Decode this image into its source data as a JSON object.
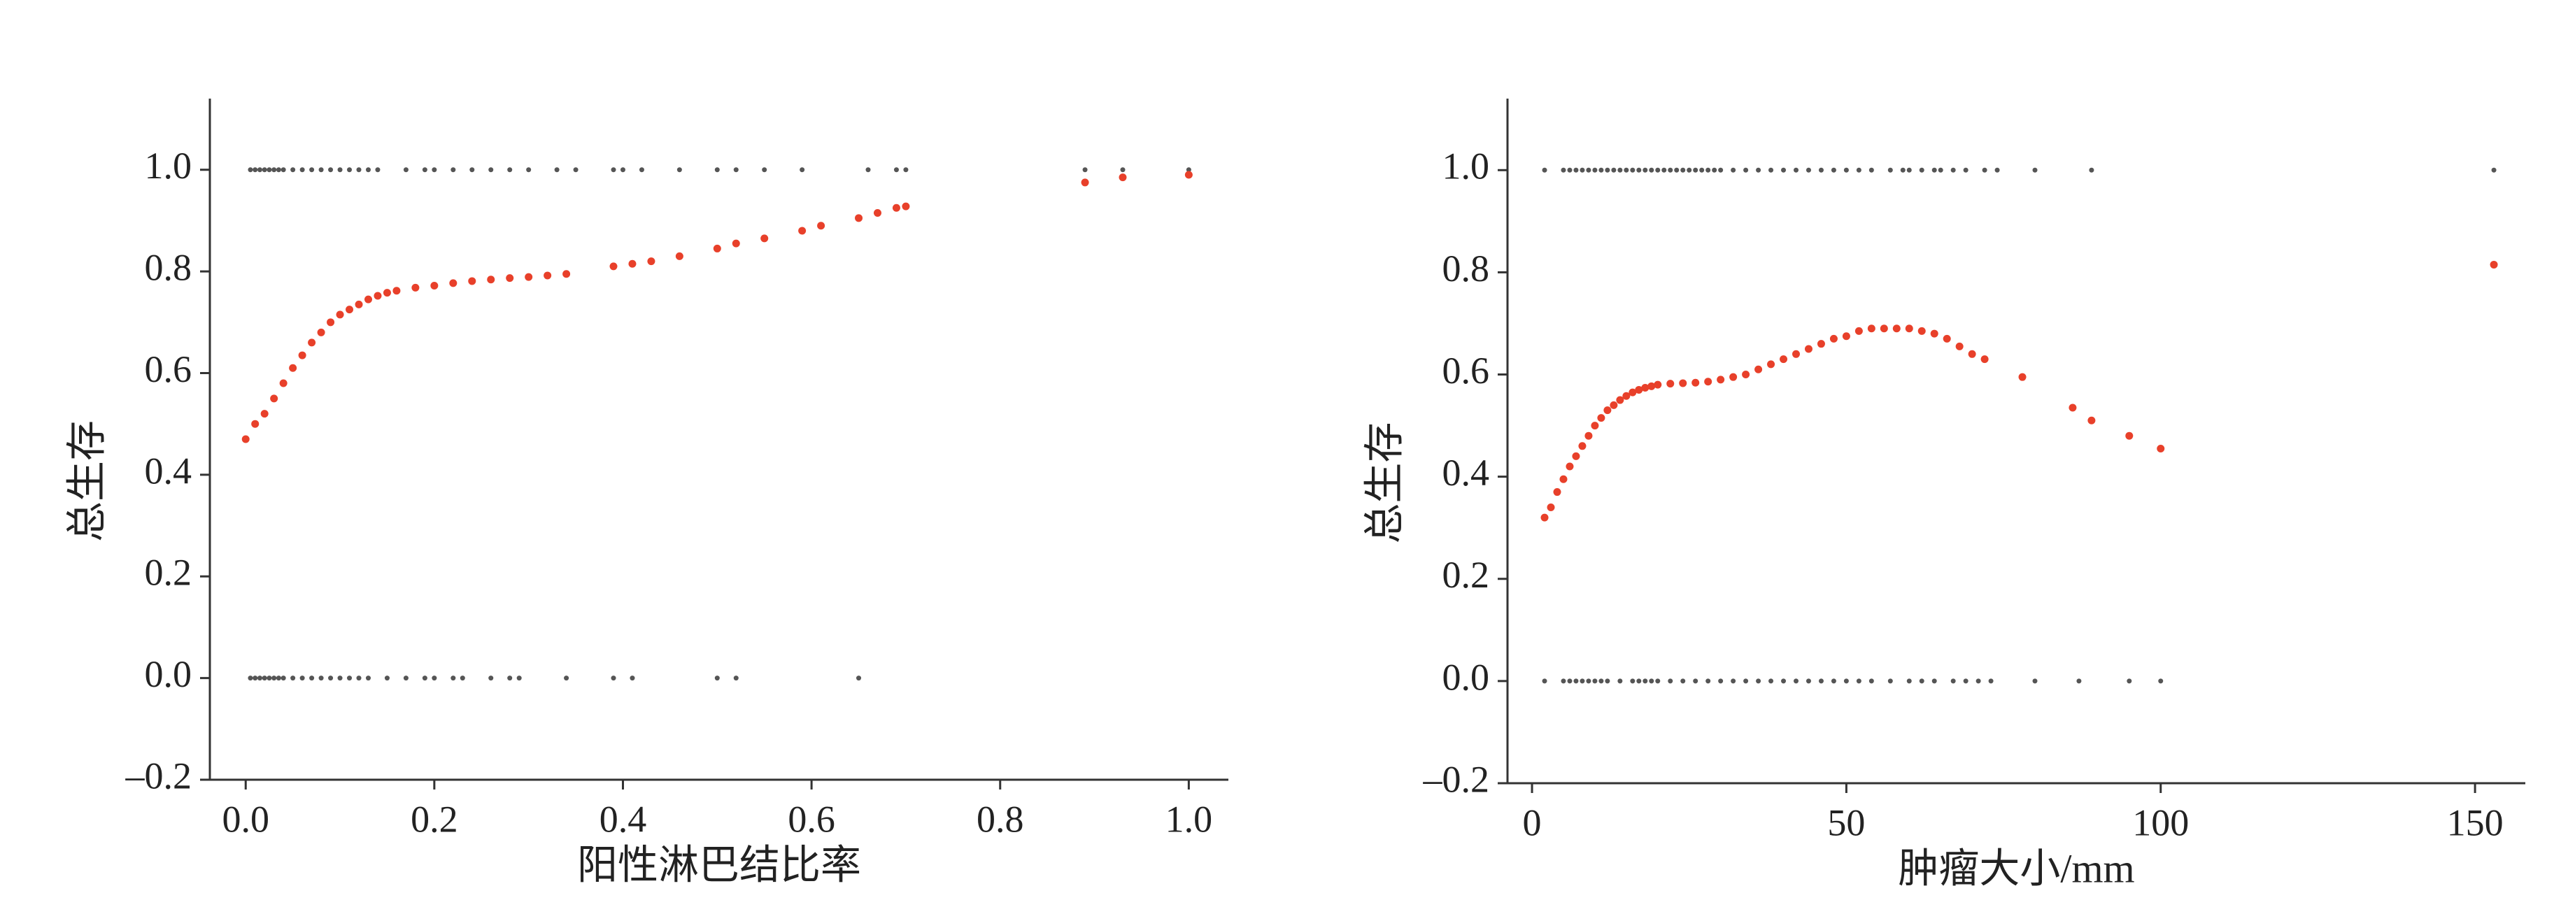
{
  "chart_data": [
    {
      "type": "scatter",
      "x_label": "阳性淋巴结比率",
      "y_label": "总生存",
      "xlim": [
        -0.038,
        1.042
      ],
      "ylim": [
        -0.2,
        1.14
      ],
      "xticks": [
        {
          "value": 0,
          "label": "0.0"
        },
        0.2,
        0.4,
        0.6,
        0.8,
        {
          "value": 1,
          "label": "1.0"
        }
      ],
      "yticks": [
        {
          "value": -0.2,
          "label": "–0.2"
        },
        {
          "value": 0,
          "label": "0.0"
        },
        0.2,
        0.4,
        0.6,
        0.8,
        {
          "value": 1,
          "label": "1.0"
        }
      ],
      "series": [
        {
          "color": "#555555",
          "x": [
            0.005,
            0.01,
            0.015,
            0.02,
            0.025,
            0.03,
            0.035,
            0.04,
            0.05,
            0.06,
            0.07,
            0.08,
            0.09,
            0.1,
            0.11,
            0.12,
            0.13,
            0.14,
            0.17,
            0.19,
            0.2,
            0.22,
            0.24,
            0.26,
            0.28,
            0.3,
            0.33,
            0.35,
            0.39,
            0.4,
            0.42,
            0.46,
            0.5,
            0.52,
            0.55,
            0.59,
            0.66,
            0.69,
            0.7,
            0.89,
            0.93,
            1.0
          ],
          "y": [
            1,
            1,
            1,
            1,
            1,
            1,
            1,
            1,
            1,
            1,
            1,
            1,
            1,
            1,
            1,
            1,
            1,
            1,
            1,
            1,
            1,
            1,
            1,
            1,
            1,
            1,
            1,
            1,
            1,
            1,
            1,
            1,
            1,
            1,
            1,
            1,
            1,
            1,
            1,
            1,
            1,
            1
          ]
        },
        {
          "color": "#555555",
          "x": [
            0.005,
            0.01,
            0.015,
            0.02,
            0.025,
            0.03,
            0.035,
            0.04,
            0.05,
            0.06,
            0.07,
            0.08,
            0.09,
            0.1,
            0.11,
            0.12,
            0.13,
            0.15,
            0.17,
            0.19,
            0.2,
            0.22,
            0.23,
            0.26,
            0.28,
            0.29,
            0.34,
            0.39,
            0.41,
            0.5,
            0.52,
            0.65
          ],
          "y": [
            0,
            0,
            0,
            0,
            0,
            0,
            0,
            0,
            0,
            0,
            0,
            0,
            0,
            0,
            0,
            0,
            0,
            0,
            0,
            0,
            0,
            0,
            0,
            0,
            0,
            0,
            0,
            0,
            0,
            0,
            0,
            0
          ]
        },
        {
          "color": "#e8402a",
          "x": [
            0,
            0.01,
            0.02,
            0.03,
            0.04,
            0.05,
            0.06,
            0.07,
            0.08,
            0.09,
            0.1,
            0.11,
            0.12,
            0.13,
            0.14,
            0.15,
            0.16,
            0.18,
            0.2,
            0.22,
            0.24,
            0.26,
            0.28,
            0.3,
            0.32,
            0.34,
            0.39,
            0.41,
            0.43,
            0.46,
            0.5,
            0.52,
            0.55,
            0.59,
            0.61,
            0.65,
            0.67,
            0.69,
            0.7,
            0.89,
            0.93,
            1.0
          ],
          "y": [
            0.47,
            0.5,
            0.52,
            0.55,
            0.58,
            0.61,
            0.635,
            0.66,
            0.68,
            0.7,
            0.715,
            0.725,
            0.735,
            0.745,
            0.752,
            0.758,
            0.762,
            0.768,
            0.772,
            0.777,
            0.781,
            0.784,
            0.787,
            0.789,
            0.792,
            0.795,
            0.81,
            0.815,
            0.82,
            0.83,
            0.845,
            0.855,
            0.865,
            0.88,
            0.89,
            0.905,
            0.915,
            0.925,
            0.928,
            0.975,
            0.985,
            0.99
          ]
        }
      ]
    },
    {
      "type": "scatter",
      "x_label": "肿瘤大小/mm",
      "y_label": "总生存",
      "xlim": [
        -3.9,
        158
      ],
      "ylim": [
        -0.2,
        1.14
      ],
      "xticks": [
        0,
        50,
        100,
        150
      ],
      "yticks": [
        {
          "value": -0.2,
          "label": "–0.2"
        },
        {
          "value": 0,
          "label": "0.0"
        },
        0.2,
        0.4,
        0.6,
        0.8,
        {
          "value": 1,
          "label": "1.0"
        }
      ],
      "series": [
        {
          "color": "#555555",
          "x": [
            2,
            5,
            6,
            7,
            8,
            9,
            10,
            11,
            12,
            13,
            14,
            15,
            16,
            17,
            18,
            19,
            20,
            21,
            22,
            23,
            24,
            25,
            26,
            27,
            28,
            29,
            30,
            32,
            34,
            36,
            38,
            40,
            42,
            44,
            46,
            48,
            50,
            52,
            54,
            57,
            59,
            60,
            62,
            64,
            65,
            67,
            69,
            72,
            74,
            80,
            89,
            153
          ],
          "y": [
            1,
            1,
            1,
            1,
            1,
            1,
            1,
            1,
            1,
            1,
            1,
            1,
            1,
            1,
            1,
            1,
            1,
            1,
            1,
            1,
            1,
            1,
            1,
            1,
            1,
            1,
            1,
            1,
            1,
            1,
            1,
            1,
            1,
            1,
            1,
            1,
            1,
            1,
            1,
            1,
            1,
            1,
            1,
            1,
            1,
            1,
            1,
            1,
            1,
            1,
            1,
            1
          ]
        },
        {
          "color": "#555555",
          "x": [
            2,
            5,
            6,
            7,
            8,
            9,
            10,
            11,
            12,
            14,
            16,
            17,
            18,
            19,
            20,
            22,
            24,
            26,
            28,
            30,
            32,
            34,
            36,
            38,
            40,
            42,
            44,
            46,
            48,
            50,
            52,
            54,
            57,
            60,
            62,
            64,
            67,
            69,
            71,
            73,
            80,
            87,
            95,
            100
          ],
          "y": [
            0,
            0,
            0,
            0,
            0,
            0,
            0,
            0,
            0,
            0,
            0,
            0,
            0,
            0,
            0,
            0,
            0,
            0,
            0,
            0,
            0,
            0,
            0,
            0,
            0,
            0,
            0,
            0,
            0,
            0,
            0,
            0,
            0,
            0,
            0,
            0,
            0,
            0,
            0,
            0,
            0,
            0,
            0,
            0
          ]
        },
        {
          "color": "#e8402a",
          "x": [
            2,
            3,
            4,
            5,
            6,
            7,
            8,
            9,
            10,
            11,
            12,
            13,
            14,
            15,
            16,
            17,
            18,
            19,
            20,
            22,
            24,
            26,
            28,
            30,
            32,
            34,
            36,
            38,
            40,
            42,
            44,
            46,
            48,
            50,
            52,
            54,
            56,
            58,
            60,
            62,
            64,
            66,
            68,
            70,
            72,
            78,
            86,
            89,
            95,
            100,
            153
          ],
          "y": [
            0.32,
            0.34,
            0.37,
            0.395,
            0.42,
            0.44,
            0.46,
            0.48,
            0.5,
            0.515,
            0.53,
            0.54,
            0.55,
            0.558,
            0.565,
            0.57,
            0.574,
            0.577,
            0.58,
            0.582,
            0.583,
            0.584,
            0.586,
            0.59,
            0.595,
            0.6,
            0.61,
            0.62,
            0.63,
            0.64,
            0.65,
            0.66,
            0.67,
            0.675,
            0.685,
            0.69,
            0.69,
            0.69,
            0.69,
            0.685,
            0.68,
            0.67,
            0.655,
            0.64,
            0.63,
            0.595,
            0.535,
            0.51,
            0.48,
            0.455,
            0.815
          ]
        }
      ]
    }
  ]
}
